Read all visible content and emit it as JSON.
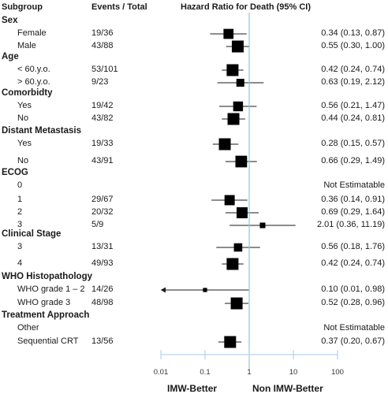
{
  "headers": {
    "subgroup": "Subgroup",
    "events": "Events / Total",
    "hr": "Hazard Ratio for Death (95% CI)"
  },
  "footer": {
    "left": "IMW-Better",
    "right": "Non IMW-Better"
  },
  "chart_data": {
    "type": "forest",
    "x_scale": "log",
    "xlim": [
      0.01,
      100
    ],
    "x_ticks": [
      "0.01",
      "0.1",
      "1",
      "10",
      "100"
    ],
    "reference_line": 1,
    "rows": [
      {
        "kind": "group",
        "label": "Sex"
      },
      {
        "kind": "item",
        "label": "Female",
        "events": "19/36",
        "hr_text": "0.34 (0.13, 0.87)",
        "hr": 0.34,
        "lo": 0.13,
        "hi": 0.87
      },
      {
        "kind": "item",
        "label": "Male",
        "events": "43/88",
        "hr_text": "0.55 (0.30, 1.00)",
        "hr": 0.55,
        "lo": 0.3,
        "hi": 1.0
      },
      {
        "kind": "group",
        "label": "Age"
      },
      {
        "kind": "item",
        "label": "< 60.y.o.",
        "events": "53/101",
        "hr_text": "0.42 (0.24, 0.74)",
        "hr": 0.42,
        "lo": 0.24,
        "hi": 0.74
      },
      {
        "kind": "item",
        "label": "> 60.y.o.",
        "events": "9/23",
        "hr_text": "0.63 (0.19, 2.12)",
        "hr": 0.63,
        "lo": 0.19,
        "hi": 2.12
      },
      {
        "kind": "group",
        "label": "Comorbidty"
      },
      {
        "kind": "item",
        "label": "Yes",
        "events": "19/42",
        "hr_text": "0.56 (0.21, 1.47)",
        "hr": 0.56,
        "lo": 0.21,
        "hi": 1.47
      },
      {
        "kind": "item",
        "label": "No",
        "events": "43/82",
        "hr_text": "0.44 (0.24, 0.81)",
        "hr": 0.44,
        "lo": 0.24,
        "hi": 0.81
      },
      {
        "kind": "group",
        "label": "Distant Metastasis"
      },
      {
        "kind": "item",
        "label": "Yes",
        "events": "19/33",
        "hr_text": "0.28 (0.15, 0.57)",
        "hr": 0.28,
        "lo": 0.15,
        "hi": 0.57
      },
      {
        "kind": "item",
        "label": "No",
        "events": "43/91",
        "hr_text": "0.66 (0.29, 1.49)",
        "hr": 0.66,
        "lo": 0.29,
        "hi": 1.49
      },
      {
        "kind": "group",
        "label": "ECOG"
      },
      {
        "kind": "item",
        "label": "0",
        "events": "",
        "hr_text": "Not Estimatable",
        "hr": null,
        "lo": null,
        "hi": null
      },
      {
        "kind": "item",
        "label": "1",
        "events": "29/67",
        "hr_text": "0.36 (0.14, 0.91)",
        "hr": 0.36,
        "lo": 0.14,
        "hi": 0.91
      },
      {
        "kind": "item",
        "label": "2",
        "events": "20/32",
        "hr_text": "0.69 (0.29, 1.64)",
        "hr": 0.69,
        "lo": 0.29,
        "hi": 1.64
      },
      {
        "kind": "item",
        "label": "3",
        "events": "5/9",
        "hr_text": "2.01 (0.36, 11.19)",
        "hr": 2.01,
        "lo": 0.36,
        "hi": 11.19
      },
      {
        "kind": "group",
        "label": "Clinical Stage"
      },
      {
        "kind": "item",
        "label": "3",
        "events": "13/31",
        "hr_text": "0.56 (0.18, 1.76)",
        "hr": 0.56,
        "lo": 0.18,
        "hi": 1.76
      },
      {
        "kind": "item",
        "label": "4",
        "events": "49/93",
        "hr_text": "0.42 (0.24, 0.74)",
        "hr": 0.42,
        "lo": 0.24,
        "hi": 0.74
      },
      {
        "kind": "group",
        "label": "WHO Histopathology"
      },
      {
        "kind": "item",
        "label": "WHO grade 1 – 2",
        "events": "14/26",
        "hr_text": "0.10 (0.01, 0.98)",
        "hr": 0.1,
        "lo": 0.01,
        "hi": 0.98
      },
      {
        "kind": "item",
        "label": "WHO grade 3",
        "events": "48/98",
        "hr_text": "0.52 (0.28, 0.96)",
        "hr": 0.52,
        "lo": 0.28,
        "hi": 0.96
      },
      {
        "kind": "group",
        "label": "Treatment Approach"
      },
      {
        "kind": "item",
        "label": "Other",
        "events": "",
        "hr_text": "Not Estimatable",
        "hr": null,
        "lo": null,
        "hi": null
      },
      {
        "kind": "item",
        "label": "Sequential CRT",
        "events": "13/56",
        "hr_text": "0.37 (0.20, 0.67)",
        "hr": 0.37,
        "lo": 0.2,
        "hi": 0.67
      }
    ]
  }
}
